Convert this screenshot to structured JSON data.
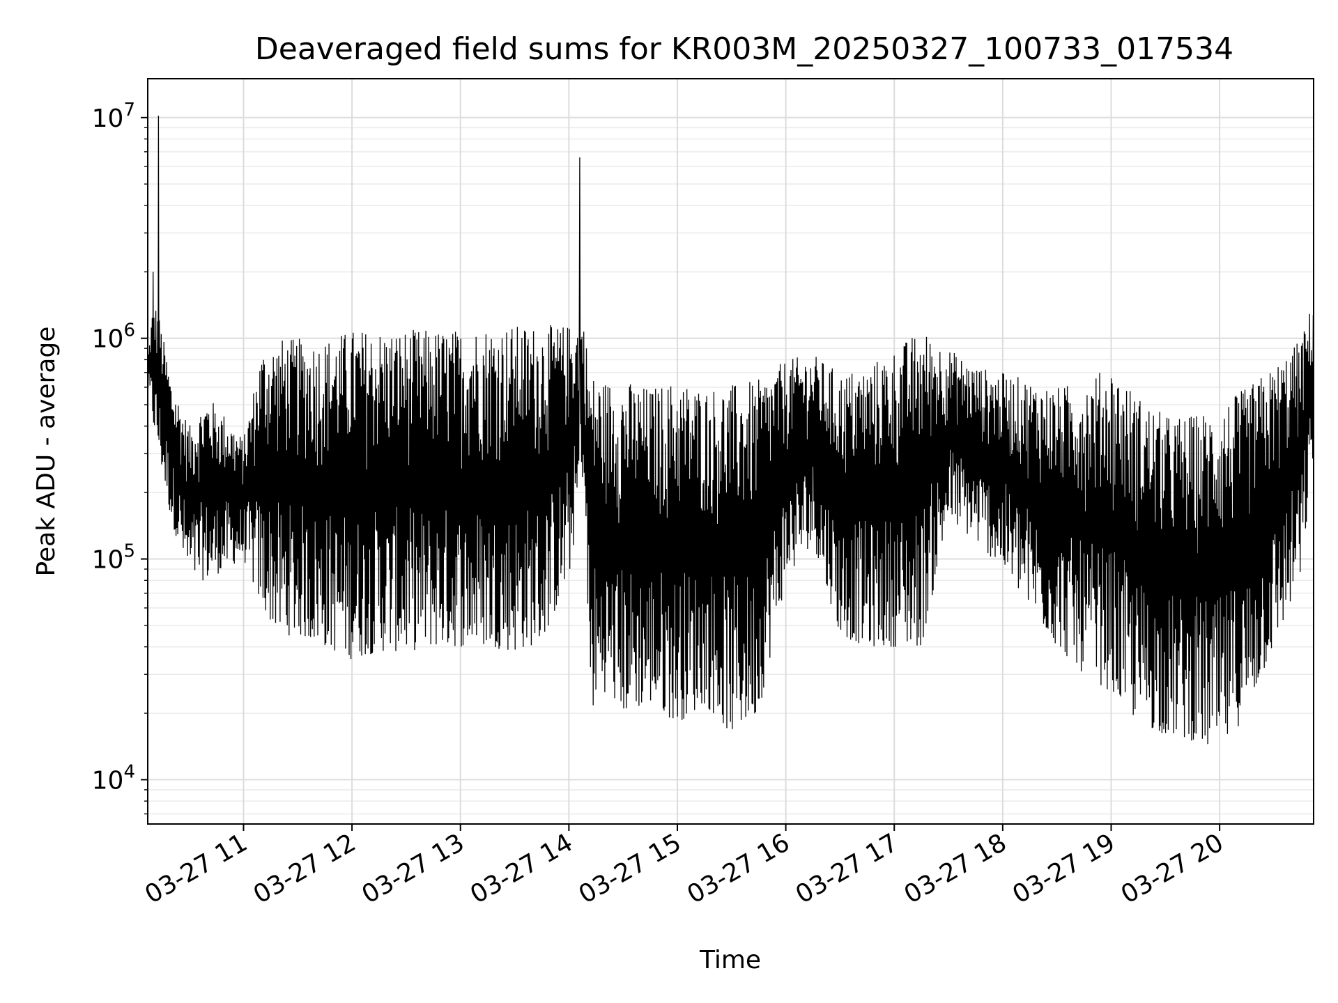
{
  "chart_data": {
    "type": "line",
    "title": "Deaveraged field sums for KR003M_20250327_100733_017534",
    "xlabel": "Time",
    "ylabel": "Peak ADU - average",
    "yscale": "log",
    "ylim": [
      6300,
      15000000
    ],
    "xlim": [
      "2025-03-27 10:07",
      "2025-03-27 20:52"
    ],
    "grid": "on",
    "line_color": "#000000",
    "x_ticks": [
      "03-27 11",
      "03-27 12",
      "03-27 13",
      "03-27 14",
      "03-27 15",
      "03-27 16",
      "03-27 17",
      "03-27 18",
      "03-27 19",
      "03-27 20"
    ],
    "y_ticks": [
      {
        "base": "10",
        "exp": "4"
      },
      {
        "base": "10",
        "exp": "5"
      },
      {
        "base": "10",
        "exp": "6"
      },
      {
        "base": "10",
        "exp": "7"
      }
    ],
    "envelope": {
      "x": [
        "10:07",
        "10:10",
        "10:13",
        "10:20",
        "10:30",
        "10:40",
        "10:50",
        "11:00",
        "11:10",
        "11:20",
        "11:30",
        "11:45",
        "12:00",
        "12:15",
        "12:30",
        "12:45",
        "13:00",
        "13:15",
        "13:30",
        "13:45",
        "14:00",
        "14:08",
        "14:12",
        "14:20",
        "14:30",
        "14:45",
        "15:00",
        "15:15",
        "15:30",
        "15:45",
        "16:00",
        "16:15",
        "16:30",
        "16:45",
        "17:00",
        "17:15",
        "17:30",
        "17:45",
        "18:00",
        "18:15",
        "18:30",
        "18:45",
        "19:00",
        "19:15",
        "19:30",
        "19:45",
        "20:00",
        "20:15",
        "20:30",
        "20:45",
        "20:52"
      ],
      "upper": [
        800000,
        1500000,
        1300000,
        650000,
        400000,
        550000,
        450000,
        350000,
        900000,
        1000000,
        1000000,
        1000000,
        1100000,
        1100000,
        1100000,
        1100000,
        1100000,
        1150000,
        1150000,
        1150000,
        1150000,
        1200000,
        700000,
        650000,
        650000,
        600000,
        650000,
        600000,
        620000,
        650000,
        800000,
        850000,
        700000,
        750000,
        900000,
        1100000,
        900000,
        750000,
        700000,
        650000,
        600000,
        650000,
        750000,
        550000,
        450000,
        450000,
        500000,
        600000,
        750000,
        1000000,
        1500000
      ],
      "lower": [
        600000,
        400000,
        300000,
        150000,
        80000,
        80000,
        90000,
        100000,
        60000,
        45000,
        45000,
        40000,
        35000,
        38000,
        38000,
        40000,
        40000,
        40000,
        38000,
        42000,
        80000,
        250000,
        20000,
        25000,
        20000,
        22000,
        18000,
        22000,
        16000,
        20000,
        80000,
        120000,
        45000,
        40000,
        40000,
        40000,
        150000,
        120000,
        90000,
        60000,
        40000,
        30000,
        25000,
        18000,
        16000,
        15000,
        13000,
        20000,
        40000,
        80000,
        300000
      ]
    },
    "spikes": [
      {
        "x": "10:13",
        "y": 10200000
      },
      {
        "x": "14:06",
        "y": 6600000
      },
      {
        "x": "10:10",
        "y": 2000000
      }
    ]
  }
}
